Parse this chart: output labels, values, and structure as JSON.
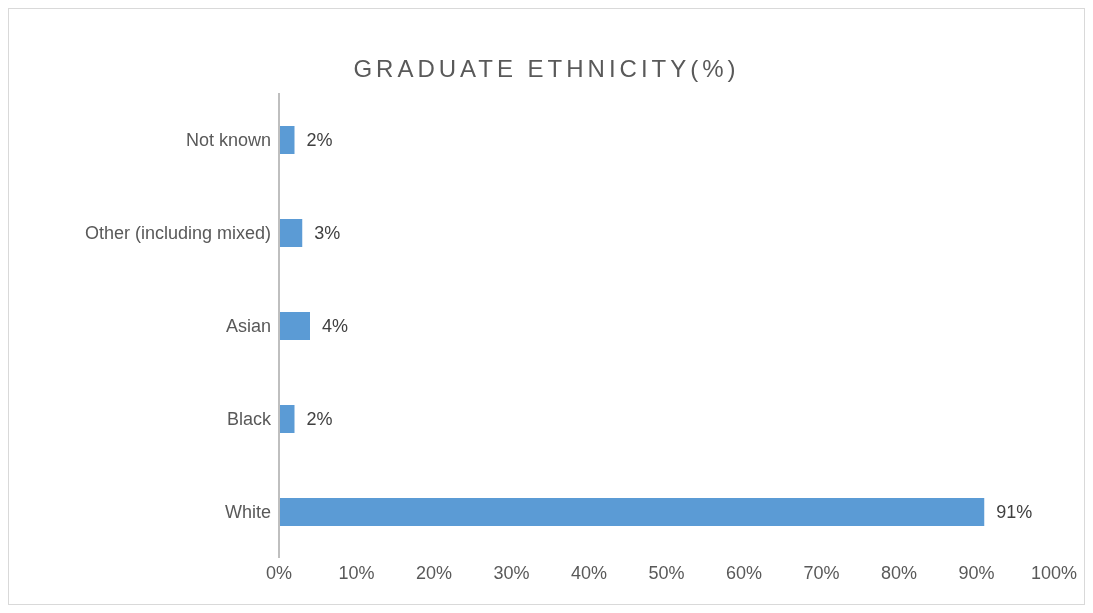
{
  "chart_data": {
    "type": "bar",
    "orientation": "horizontal",
    "title": "GRADUATE ETHNICITY(%)",
    "categories": [
      "Not known",
      "Other (including mixed)",
      "Asian",
      "Black",
      "White"
    ],
    "values": [
      2,
      3,
      4,
      2,
      91
    ],
    "value_labels": [
      "2%",
      "3%",
      "4%",
      "2%",
      "91%"
    ],
    "color": "#5b9bd5",
    "xlim": [
      0,
      100
    ],
    "xticks": [
      {
        "value": 0,
        "label": "0%"
      },
      {
        "value": 10,
        "label": "10%"
      },
      {
        "value": 20,
        "label": "20%"
      },
      {
        "value": 30,
        "label": "30%"
      },
      {
        "value": 40,
        "label": "40%"
      },
      {
        "value": 50,
        "label": "50%"
      },
      {
        "value": 60,
        "label": "60%"
      },
      {
        "value": 70,
        "label": "70%"
      },
      {
        "value": 80,
        "label": "80%"
      },
      {
        "value": 90,
        "label": "90%"
      },
      {
        "value": 100,
        "label": "100%"
      }
    ]
  }
}
